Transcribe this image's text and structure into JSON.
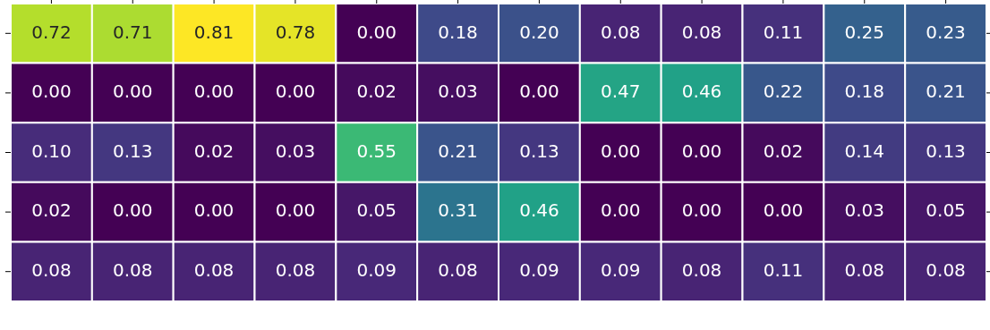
{
  "chart_data": {
    "type": "heatmap",
    "categories": [
      null,
      null,
      null,
      null,
      null,
      null,
      null,
      null,
      null,
      null,
      null,
      null
    ],
    "y_categories": [
      null,
      null,
      null,
      null,
      null
    ],
    "cells": [
      [
        0.72,
        0.71,
        0.81,
        0.78,
        0.0,
        0.18,
        0.2,
        0.08,
        0.08,
        0.11,
        0.25,
        0.23
      ],
      [
        0.0,
        0.0,
        0.0,
        0.0,
        0.02,
        0.03,
        0.0,
        0.47,
        0.46,
        0.22,
        0.18,
        0.21
      ],
      [
        0.1,
        0.13,
        0.02,
        0.03,
        0.55,
        0.21,
        0.13,
        0.0,
        0.0,
        0.02,
        0.14,
        0.13
      ],
      [
        0.02,
        0.0,
        0.0,
        0.0,
        0.05,
        0.31,
        0.46,
        0.0,
        0.0,
        0.0,
        0.03,
        0.05
      ],
      [
        0.08,
        0.08,
        0.08,
        0.08,
        0.09,
        0.08,
        0.09,
        0.09,
        0.08,
        0.11,
        0.08,
        0.08
      ]
    ],
    "cell_labels": [
      [
        "0.72",
        "0.71",
        "0.81",
        "0.78",
        "0.00",
        "0.18",
        "0.20",
        "0.08",
        "0.08",
        "0.11",
        "0.25",
        "0.23"
      ],
      [
        "0.00",
        "0.00",
        "0.00",
        "0.00",
        "0.02",
        "0.03",
        "0.00",
        "0.47",
        "0.46",
        "0.22",
        "0.18",
        "0.21"
      ],
      [
        "0.10",
        "0.13",
        "0.02",
        "0.03",
        "0.55",
        "0.21",
        "0.13",
        "0.00",
        "0.00",
        "0.02",
        "0.14",
        "0.13"
      ],
      [
        "0.02",
        "0.00",
        "0.00",
        "0.00",
        "0.05",
        "0.31",
        "0.46",
        "0.00",
        "0.00",
        "0.00",
        "0.03",
        "0.05"
      ],
      [
        "0.08",
        "0.08",
        "0.08",
        "0.08",
        "0.09",
        "0.08",
        "0.09",
        "0.09",
        "0.08",
        "0.11",
        "0.08",
        "0.08"
      ]
    ],
    "tick_labels": false,
    "data_labels": true
  }
}
